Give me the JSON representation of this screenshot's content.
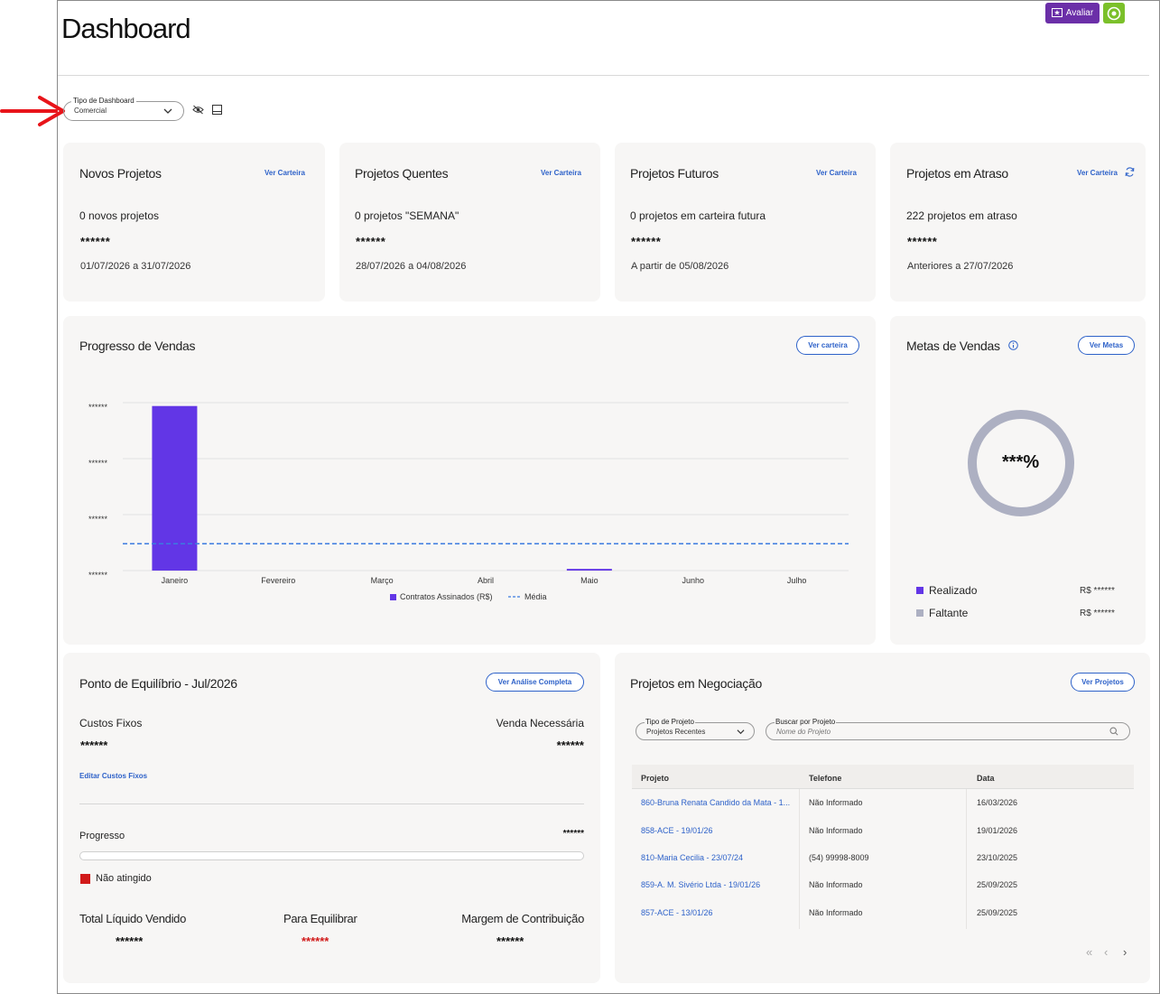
{
  "header": {
    "title": "Dashboard",
    "avaliar_label": "Avaliar"
  },
  "dashboard_type": {
    "label": "Tipo de Dashboard",
    "value": "Comercial"
  },
  "kpis": [
    {
      "title": "Novos Projetos",
      "link": "Ver Carteira",
      "summary": "0 novos projetos",
      "value": "******",
      "period": "01/07/2026 a 31/07/2026"
    },
    {
      "title": "Projetos Quentes",
      "link": "Ver Carteira",
      "summary": "0 projetos \"SEMANA\"",
      "value": "******",
      "period": "28/07/2026 a 04/08/2026"
    },
    {
      "title": "Projetos Futuros",
      "link": "Ver Carteira",
      "summary": "0 projetos em carteira futura",
      "value": "******",
      "period": "A partir de 05/08/2026"
    },
    {
      "title": "Projetos em Atraso",
      "link": "Ver Carteira",
      "summary": "222 projetos em atraso",
      "value": "******",
      "period": "Anteriores a 27/07/2026"
    }
  ],
  "sales_progress": {
    "title": "Progresso de Vendas",
    "button": "Ver carteira"
  },
  "chart_data": {
    "type": "bar",
    "title": "Progresso de Vendas",
    "categories": [
      "Janeiro",
      "Fevereiro",
      "Março",
      "Abril",
      "Maio",
      "Junho",
      "Julho"
    ],
    "y_tick_labels": [
      "******",
      "******",
      "******",
      "******"
    ],
    "ylim": [
      0,
      100
    ],
    "series": [
      {
        "name": "Contratos Assinados (R$)",
        "type": "bar",
        "color": "#6236e6",
        "values": [
          98,
          0,
          0,
          0,
          1,
          0,
          0
        ]
      },
      {
        "name": "Média",
        "type": "line-dashed",
        "color": "#3b7be0",
        "values": [
          16,
          16,
          16,
          16,
          16,
          16,
          16
        ]
      }
    ],
    "grid": true,
    "legend": "bottom-center"
  },
  "goals": {
    "title": "Metas de Vendas",
    "button": "Ver Metas",
    "percent_label": "***%",
    "realizado_fraction": 0,
    "legend": [
      {
        "label": "Realizado",
        "value": "R$ ******",
        "color": "#6236e6"
      },
      {
        "label": "Faltante",
        "value": "R$ ******",
        "color": "#adb0c2"
      }
    ]
  },
  "breakeven": {
    "title": "Ponto de Equilíbrio - Jul/2026",
    "button": "Ver Análise Completa",
    "fixed_costs_label": "Custos Fixos",
    "fixed_costs_value": "******",
    "required_sales_label": "Venda Necessária",
    "required_sales_value": "******",
    "edit_link": "Editar Custos Fixos",
    "progress_label": "Progresso",
    "progress_value": "******",
    "progress_fraction": 0,
    "status_label": "Não atingido",
    "status_color": "#d11a1a",
    "totals": [
      {
        "label": "Total Líquido Vendido",
        "value": "******"
      },
      {
        "label": "Para Equilibrar",
        "value": "******"
      },
      {
        "label": "Margem de Contribuição",
        "value": "******"
      }
    ]
  },
  "negotiation": {
    "title": "Projetos em Negociação",
    "button": "Ver Projetos",
    "type_label": "Tipo de Projeto",
    "type_value": "Projetos Recentes",
    "search_label": "Buscar por Projeto",
    "search_placeholder": "Nome do Projeto",
    "columns": [
      "Projeto",
      "Telefone",
      "Data"
    ],
    "rows": [
      {
        "project": "860-Bruna Renata Candido da Mata - 1...",
        "phone": "Não Informado",
        "date": "16/03/2026"
      },
      {
        "project": "858-ACE - 19/01/26",
        "phone": "Não Informado",
        "date": "19/01/2026"
      },
      {
        "project": "810-Maria Cecilia - 23/07/24",
        "phone": "(54) 99998-8009",
        "date": "23/10/2025"
      },
      {
        "project": "859-A. M. Sivério Ltda - 19/01/26",
        "phone": "Não Informado",
        "date": "25/09/2025"
      },
      {
        "project": "857-ACE - 13/01/26",
        "phone": "Não Informado",
        "date": "25/09/2025"
      }
    ]
  }
}
